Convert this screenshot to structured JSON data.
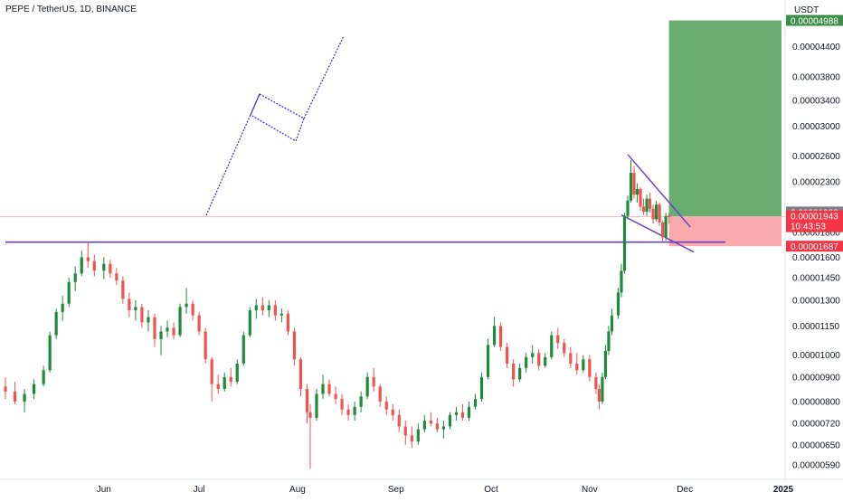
{
  "header": {
    "title": "PEPE / TetherUS, 1D, BINANCE",
    "currency_unit": "USDT"
  },
  "price_labels": {
    "reference": "0.00001988",
    "last": "0.00001943",
    "countdown": "10:43:53",
    "stop": "0.00001687",
    "target": "0.00004988"
  },
  "colors": {
    "up": "#26a69a",
    "up_body": "#1e8b3a",
    "down": "#ef5350",
    "drawing": "#2d2dd6",
    "channel": "#6a3fc7",
    "profit_zone": "#4f9f58",
    "loss_zone": "#f7a1a3",
    "last_price": "#f23645",
    "reference_tag": "#7d7f87"
  },
  "chart_data": {
    "type": "candlestick",
    "title": "PEPE / TetherUS, 1D, BINANCE",
    "scale": "log",
    "ylim": [
      5.7e-06,
      5.2e-06
    ],
    "y_ticks": [
      "0.00004400",
      "0.00003800",
      "0.00003400",
      "0.00003000",
      "0.00002600",
      "0.00002300",
      "0.00001800",
      "0.00001600",
      "0.00001450",
      "0.00001300",
      "0.00001150",
      "0.00001000",
      "0.00000900",
      "0.00000800",
      "0.00000720",
      "0.00000650",
      "0.00000590"
    ],
    "x_ticks": [
      "Jun",
      "Jul",
      "Aug",
      "Sep",
      "Oct",
      "Nov",
      "Dec",
      "2025"
    ],
    "candles": [
      {
        "d": "2024-05-01",
        "o": 8.6e-06,
        "h": 9e-06,
        "l": 8.1e-06,
        "c": 8.4e-06
      },
      {
        "d": "2024-05-04",
        "o": 8.4e-06,
        "h": 8.8e-06,
        "l": 7.9e-06,
        "c": 8e-06
      },
      {
        "d": "2024-05-07",
        "o": 8e-06,
        "h": 8.5e-06,
        "l": 7.6e-06,
        "c": 8.3e-06
      },
      {
        "d": "2024-05-10",
        "o": 8.3e-06,
        "h": 8.9e-06,
        "l": 8.1e-06,
        "c": 8.7e-06
      },
      {
        "d": "2024-05-13",
        "o": 8.7e-06,
        "h": 9.5e-06,
        "l": 8.6e-06,
        "c": 9.3e-06
      },
      {
        "d": "2024-05-15",
        "o": 9.3e-06,
        "h": 1.12e-05,
        "l": 9.2e-06,
        "c": 1.1e-05
      },
      {
        "d": "2024-05-17",
        "o": 1.1e-05,
        "h": 1.25e-05,
        "l": 1.08e-05,
        "c": 1.23e-05
      },
      {
        "d": "2024-05-19",
        "o": 1.23e-05,
        "h": 1.33e-05,
        "l": 1.18e-05,
        "c": 1.28e-05
      },
      {
        "d": "2024-05-21",
        "o": 1.28e-05,
        "h": 1.45e-05,
        "l": 1.26e-05,
        "c": 1.42e-05
      },
      {
        "d": "2024-05-23",
        "o": 1.42e-05,
        "h": 1.53e-05,
        "l": 1.36e-05,
        "c": 1.48e-05
      },
      {
        "d": "2024-05-25",
        "o": 1.48e-05,
        "h": 1.65e-05,
        "l": 1.46e-05,
        "c": 1.6e-05
      },
      {
        "d": "2024-05-27",
        "o": 1.6e-05,
        "h": 1.72e-05,
        "l": 1.52e-05,
        "c": 1.57e-05
      },
      {
        "d": "2024-05-29",
        "o": 1.57e-05,
        "h": 1.62e-05,
        "l": 1.46e-05,
        "c": 1.5e-05
      },
      {
        "d": "2024-06-01",
        "o": 1.5e-05,
        "h": 1.6e-05,
        "l": 1.44e-05,
        "c": 1.55e-05
      },
      {
        "d": "2024-06-03",
        "o": 1.55e-05,
        "h": 1.58e-05,
        "l": 1.45e-05,
        "c": 1.48e-05
      },
      {
        "d": "2024-06-05",
        "o": 1.48e-05,
        "h": 1.52e-05,
        "l": 1.4e-05,
        "c": 1.43e-05
      },
      {
        "d": "2024-06-07",
        "o": 1.43e-05,
        "h": 1.46e-05,
        "l": 1.28e-05,
        "c": 1.31e-05
      },
      {
        "d": "2024-06-09",
        "o": 1.31e-05,
        "h": 1.35e-05,
        "l": 1.2e-05,
        "c": 1.24e-05
      },
      {
        "d": "2024-06-11",
        "o": 1.24e-05,
        "h": 1.3e-05,
        "l": 1.18e-05,
        "c": 1.26e-05
      },
      {
        "d": "2024-06-13",
        "o": 1.26e-05,
        "h": 1.28e-05,
        "l": 1.14e-05,
        "c": 1.17e-05
      },
      {
        "d": "2024-06-15",
        "o": 1.17e-05,
        "h": 1.24e-05,
        "l": 1.12e-05,
        "c": 1.2e-05
      },
      {
        "d": "2024-06-17",
        "o": 1.2e-05,
        "h": 1.22e-05,
        "l": 1.04e-05,
        "c": 1.08e-05
      },
      {
        "d": "2024-06-19",
        "o": 1.08e-05,
        "h": 1.15e-05,
        "l": 1e-05,
        "c": 1.12e-05
      },
      {
        "d": "2024-06-21",
        "o": 1.12e-05,
        "h": 1.18e-05,
        "l": 1.09e-05,
        "c": 1.14e-05
      },
      {
        "d": "2024-06-23",
        "o": 1.14e-05,
        "h": 1.17e-05,
        "l": 1.08e-05,
        "c": 1.1e-05
      },
      {
        "d": "2024-06-25",
        "o": 1.1e-05,
        "h": 1.28e-05,
        "l": 1.09e-05,
        "c": 1.26e-05
      },
      {
        "d": "2024-06-27",
        "o": 1.26e-05,
        "h": 1.38e-05,
        "l": 1.22e-05,
        "c": 1.28e-05
      },
      {
        "d": "2024-06-29",
        "o": 1.28e-05,
        "h": 1.3e-05,
        "l": 1.18e-05,
        "c": 1.21e-05
      },
      {
        "d": "2024-07-01",
        "o": 1.21e-05,
        "h": 1.23e-05,
        "l": 1.1e-05,
        "c": 1.12e-05
      },
      {
        "d": "2024-07-03",
        "o": 1.12e-05,
        "h": 1.14e-05,
        "l": 9.6e-06,
        "c": 9.8e-06
      },
      {
        "d": "2024-07-05",
        "o": 9.8e-06,
        "h": 9.9e-06,
        "l": 8e-06,
        "c": 8.7e-06
      },
      {
        "d": "2024-07-07",
        "o": 8.7e-06,
        "h": 9.1e-06,
        "l": 8.3e-06,
        "c": 8.5e-06
      },
      {
        "d": "2024-07-09",
        "o": 8.5e-06,
        "h": 9.2e-06,
        "l": 8.4e-06,
        "c": 9e-06
      },
      {
        "d": "2024-07-11",
        "o": 9e-06,
        "h": 9.4e-06,
        "l": 8.6e-06,
        "c": 8.8e-06
      },
      {
        "d": "2024-07-13",
        "o": 8.8e-06,
        "h": 9.8e-06,
        "l": 8.7e-06,
        "c": 9.6e-06
      },
      {
        "d": "2024-07-15",
        "o": 9.6e-06,
        "h": 1.12e-05,
        "l": 9.5e-06,
        "c": 1.1e-05
      },
      {
        "d": "2024-07-17",
        "o": 1.1e-05,
        "h": 1.26e-05,
        "l": 1.09e-05,
        "c": 1.24e-05
      },
      {
        "d": "2024-07-19",
        "o": 1.24e-05,
        "h": 1.31e-05,
        "l": 1.19e-05,
        "c": 1.27e-05
      },
      {
        "d": "2024-07-21",
        "o": 1.27e-05,
        "h": 1.32e-05,
        "l": 1.21e-05,
        "c": 1.24e-05
      },
      {
        "d": "2024-07-23",
        "o": 1.24e-05,
        "h": 1.3e-05,
        "l": 1.2e-05,
        "c": 1.27e-05
      },
      {
        "d": "2024-07-25",
        "o": 1.27e-05,
        "h": 1.3e-05,
        "l": 1.18e-05,
        "c": 1.21e-05
      },
      {
        "d": "2024-07-27",
        "o": 1.21e-05,
        "h": 1.25e-05,
        "l": 1.17e-05,
        "c": 1.22e-05
      },
      {
        "d": "2024-07-29",
        "o": 1.22e-05,
        "h": 1.24e-05,
        "l": 1.1e-05,
        "c": 1.12e-05
      },
      {
        "d": "2024-07-31",
        "o": 1.12e-05,
        "h": 1.14e-05,
        "l": 9.5e-06,
        "c": 9.8e-06
      },
      {
        "d": "2024-08-02",
        "o": 9.8e-06,
        "h": 9.9e-06,
        "l": 8.2e-06,
        "c": 8.5e-06
      },
      {
        "d": "2024-08-04",
        "o": 8.5e-06,
        "h": 8.7e-06,
        "l": 7.2e-06,
        "c": 7.6e-06
      },
      {
        "d": "2024-08-05",
        "o": 7.6e-06,
        "h": 7.9e-06,
        "l": 5.8e-06,
        "c": 7.4e-06
      },
      {
        "d": "2024-08-07",
        "o": 7.4e-06,
        "h": 8.5e-06,
        "l": 7.3e-06,
        "c": 8.3e-06
      },
      {
        "d": "2024-08-09",
        "o": 8.3e-06,
        "h": 9.1e-06,
        "l": 8.1e-06,
        "c": 8.7e-06
      },
      {
        "d": "2024-08-11",
        "o": 8.7e-06,
        "h": 8.9e-06,
        "l": 8.2e-06,
        "c": 8.3e-06
      },
      {
        "d": "2024-08-13",
        "o": 8.3e-06,
        "h": 8.6e-06,
        "l": 7.9e-06,
        "c": 8.1e-06
      },
      {
        "d": "2024-08-15",
        "o": 8.1e-06,
        "h": 8.3e-06,
        "l": 7.5e-06,
        "c": 7.7e-06
      },
      {
        "d": "2024-08-17",
        "o": 7.7e-06,
        "h": 7.9e-06,
        "l": 7.3e-06,
        "c": 7.5e-06
      },
      {
        "d": "2024-08-19",
        "o": 7.5e-06,
        "h": 8e-06,
        "l": 7.3e-06,
        "c": 7.8e-06
      },
      {
        "d": "2024-08-21",
        "o": 7.8e-06,
        "h": 8.4e-06,
        "l": 7.6e-06,
        "c": 8.2e-06
      },
      {
        "d": "2024-08-23",
        "o": 8.2e-06,
        "h": 9.2e-06,
        "l": 8.1e-06,
        "c": 9e-06
      },
      {
        "d": "2024-08-25",
        "o": 9e-06,
        "h": 9.4e-06,
        "l": 8.4e-06,
        "c": 8.6e-06
      },
      {
        "d": "2024-08-27",
        "o": 8.6e-06,
        "h": 8.7e-06,
        "l": 7.8e-06,
        "c": 8e-06
      },
      {
        "d": "2024-08-29",
        "o": 8e-06,
        "h": 8.2e-06,
        "l": 7.5e-06,
        "c": 7.7e-06
      },
      {
        "d": "2024-08-31",
        "o": 7.7e-06,
        "h": 7.9e-06,
        "l": 7.3e-06,
        "c": 7.5e-06
      },
      {
        "d": "2024-09-02",
        "o": 7.5e-06,
        "h": 7.7e-06,
        "l": 6.9e-06,
        "c": 7.1e-06
      },
      {
        "d": "2024-09-04",
        "o": 7.1e-06,
        "h": 7.3e-06,
        "l": 6.5e-06,
        "c": 6.8e-06
      },
      {
        "d": "2024-09-06",
        "o": 6.8e-06,
        "h": 7.1e-06,
        "l": 6.4e-06,
        "c": 6.6e-06
      },
      {
        "d": "2024-09-08",
        "o": 6.6e-06,
        "h": 7.2e-06,
        "l": 6.5e-06,
        "c": 7e-06
      },
      {
        "d": "2024-09-10",
        "o": 7e-06,
        "h": 7.5e-06,
        "l": 6.9e-06,
        "c": 7.3e-06
      },
      {
        "d": "2024-09-12",
        "o": 7.3e-06,
        "h": 7.6e-06,
        "l": 7.1e-06,
        "c": 7.2e-06
      },
      {
        "d": "2024-09-14",
        "o": 7.2e-06,
        "h": 7.4e-06,
        "l": 6.9e-06,
        "c": 7e-06
      },
      {
        "d": "2024-09-16",
        "o": 7e-06,
        "h": 7.3e-06,
        "l": 6.7e-06,
        "c": 7.1e-06
      },
      {
        "d": "2024-09-18",
        "o": 7.1e-06,
        "h": 7.6e-06,
        "l": 7e-06,
        "c": 7.5e-06
      },
      {
        "d": "2024-09-20",
        "o": 7.5e-06,
        "h": 7.8e-06,
        "l": 7.3e-06,
        "c": 7.6e-06
      },
      {
        "d": "2024-09-22",
        "o": 7.6e-06,
        "h": 7.9e-06,
        "l": 7.3e-06,
        "c": 7.4e-06
      },
      {
        "d": "2024-09-24",
        "o": 7.4e-06,
        "h": 8e-06,
        "l": 7.3e-06,
        "c": 7.8e-06
      },
      {
        "d": "2024-09-26",
        "o": 7.8e-06,
        "h": 8.3e-06,
        "l": 7.7e-06,
        "c": 8.1e-06
      },
      {
        "d": "2024-09-28",
        "o": 8.1e-06,
        "h": 9.2e-06,
        "l": 8e-06,
        "c": 9e-06
      },
      {
        "d": "2024-09-30",
        "o": 9e-06,
        "h": 1.08e-05,
        "l": 8.9e-06,
        "c": 1.05e-05
      },
      {
        "d": "2024-10-02",
        "o": 1.05e-05,
        "h": 1.2e-05,
        "l": 1.04e-05,
        "c": 1.15e-05
      },
      {
        "d": "2024-10-04",
        "o": 1.15e-05,
        "h": 1.17e-05,
        "l": 1.02e-05,
        "c": 1.04e-05
      },
      {
        "d": "2024-10-06",
        "o": 1.04e-05,
        "h": 1.06e-05,
        "l": 9.4e-06,
        "c": 9.6e-06
      },
      {
        "d": "2024-10-08",
        "o": 9.6e-06,
        "h": 9.8e-06,
        "l": 8.6e-06,
        "c": 8.9e-06
      },
      {
        "d": "2024-10-10",
        "o": 8.9e-06,
        "h": 9.6e-06,
        "l": 8.8e-06,
        "c": 9.4e-06
      },
      {
        "d": "2024-10-12",
        "o": 9.4e-06,
        "h": 1.01e-05,
        "l": 9.2e-06,
        "c": 9.9e-06
      },
      {
        "d": "2024-10-14",
        "o": 9.9e-06,
        "h": 1.05e-05,
        "l": 9.6e-06,
        "c": 1.01e-05
      },
      {
        "d": "2024-10-16",
        "o": 1.01e-05,
        "h": 1.03e-05,
        "l": 9.3e-06,
        "c": 9.5e-06
      },
      {
        "d": "2024-10-18",
        "o": 9.5e-06,
        "h": 1.01e-05,
        "l": 9.4e-06,
        "c": 9.9e-06
      },
      {
        "d": "2024-10-20",
        "o": 9.9e-06,
        "h": 1.12e-05,
        "l": 9.8e-06,
        "c": 1.1e-05
      },
      {
        "d": "2024-10-22",
        "o": 1.1e-05,
        "h": 1.14e-05,
        "l": 1.03e-05,
        "c": 1.06e-05
      },
      {
        "d": "2024-10-24",
        "o": 1.06e-05,
        "h": 1.08e-05,
        "l": 9.9e-06,
        "c": 1.01e-05
      },
      {
        "d": "2024-10-26",
        "o": 1.01e-05,
        "h": 1.04e-05,
        "l": 9.4e-06,
        "c": 9.6e-06
      },
      {
        "d": "2024-10-28",
        "o": 9.6e-06,
        "h": 1.01e-05,
        "l": 9.1e-06,
        "c": 9.3e-06
      },
      {
        "d": "2024-10-30",
        "o": 9.3e-06,
        "h": 1e-05,
        "l": 9.2e-06,
        "c": 9.8e-06
      },
      {
        "d": "2024-11-01",
        "o": 9.8e-06,
        "h": 1e-05,
        "l": 8.8e-06,
        "c": 9e-06
      },
      {
        "d": "2024-11-03",
        "o": 9e-06,
        "h": 9.2e-06,
        "l": 8.3e-06,
        "c": 8.5e-06
      },
      {
        "d": "2024-11-04",
        "o": 8.5e-06,
        "h": 8.7e-06,
        "l": 7.7e-06,
        "c": 8e-06
      },
      {
        "d": "2024-11-05",
        "o": 8e-06,
        "h": 9.2e-06,
        "l": 7.9e-06,
        "c": 9e-06
      },
      {
        "d": "2024-11-06",
        "o": 9e-06,
        "h": 1.05e-05,
        "l": 8.9e-06,
        "c": 1.02e-05
      },
      {
        "d": "2024-11-07",
        "o": 1.02e-05,
        "h": 1.15e-05,
        "l": 1e-05,
        "c": 1.12e-05
      },
      {
        "d": "2024-11-08",
        "o": 1.12e-05,
        "h": 1.25e-05,
        "l": 1.1e-05,
        "c": 1.21e-05
      },
      {
        "d": "2024-11-10",
        "o": 1.21e-05,
        "h": 1.38e-05,
        "l": 1.19e-05,
        "c": 1.35e-05
      },
      {
        "d": "2024-11-11",
        "o": 1.35e-05,
        "h": 1.55e-05,
        "l": 1.32e-05,
        "c": 1.5e-05
      },
      {
        "d": "2024-11-12",
        "o": 1.5e-05,
        "h": 1.98e-05,
        "l": 1.48e-05,
        "c": 1.95e-05
      },
      {
        "d": "2024-11-13",
        "o": 1.95e-05,
        "h": 2.15e-05,
        "l": 1.92e-05,
        "c": 2.1e-05
      },
      {
        "d": "2024-11-14",
        "o": 2.1e-05,
        "h": 2.55e-05,
        "l": 2.08e-05,
        "c": 2.4e-05
      },
      {
        "d": "2024-11-15",
        "o": 2.4e-05,
        "h": 2.48e-05,
        "l": 2.12e-05,
        "c": 2.16e-05
      },
      {
        "d": "2024-11-16",
        "o": 2.16e-05,
        "h": 2.28e-05,
        "l": 2.08e-05,
        "c": 2.22e-05
      },
      {
        "d": "2024-11-17",
        "o": 2.22e-05,
        "h": 2.24e-05,
        "l": 2e-05,
        "c": 2.04e-05
      },
      {
        "d": "2024-11-18",
        "o": 2.04e-05,
        "h": 2.12e-05,
        "l": 1.96e-05,
        "c": 1.99e-05
      },
      {
        "d": "2024-11-19",
        "o": 1.99e-05,
        "h": 2.16e-05,
        "l": 1.95e-05,
        "c": 2.12e-05
      },
      {
        "d": "2024-11-20",
        "o": 2.12e-05,
        "h": 2.18e-05,
        "l": 1.98e-05,
        "c": 2.02e-05
      },
      {
        "d": "2024-11-21",
        "o": 2.02e-05,
        "h": 2.06e-05,
        "l": 1.88e-05,
        "c": 1.92e-05
      },
      {
        "d": "2024-11-22",
        "o": 1.92e-05,
        "h": 2.1e-05,
        "l": 1.9e-05,
        "c": 2.06e-05
      },
      {
        "d": "2024-11-23",
        "o": 2.06e-05,
        "h": 2.08e-05,
        "l": 1.86e-05,
        "c": 1.89e-05
      },
      {
        "d": "2024-11-24",
        "o": 1.89e-05,
        "h": 1.91e-05,
        "l": 1.72e-05,
        "c": 1.76e-05
      },
      {
        "d": "2024-11-25",
        "o": 1.76e-05,
        "h": 1.98e-05,
        "l": 1.73e-05,
        "c": 1.95e-05
      },
      {
        "d": "2024-11-26",
        "o": 1.95e-05,
        "h": 1.98e-05,
        "l": 1.88e-05,
        "c": 1.94e-05
      }
    ],
    "annotations": {
      "resistance_level": 1.72e-05,
      "reference_level": 1.988e-05,
      "last_price": 1.943e-05,
      "entry": 1.943e-05,
      "stop_loss": 1.687e-05,
      "take_profit": 4.988e-05
    }
  }
}
